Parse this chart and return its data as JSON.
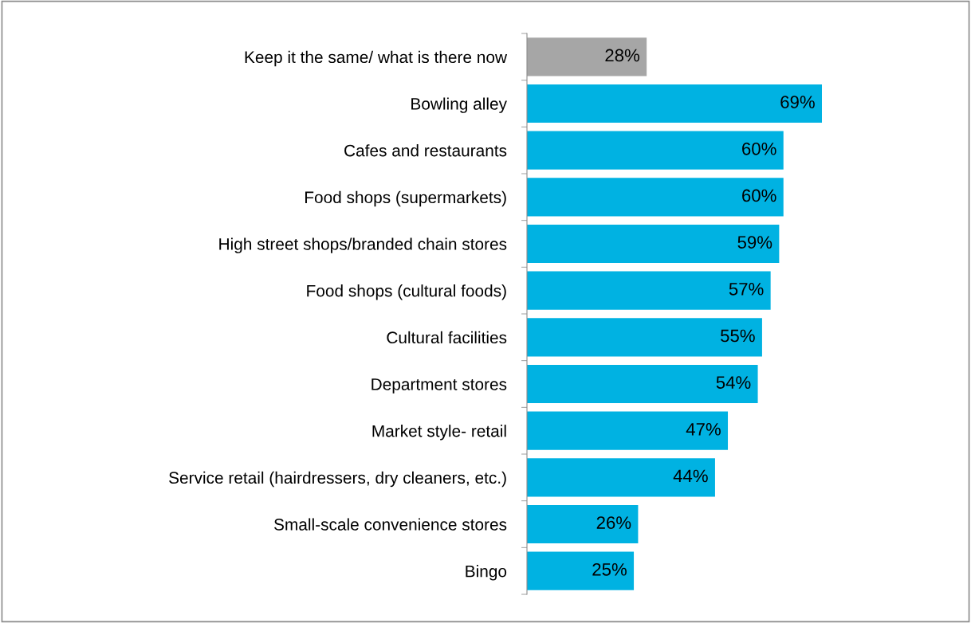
{
  "chart_data": {
    "type": "bar",
    "orientation": "horizontal",
    "categories": [
      "Keep it the same/ what is there now",
      "Bowling alley",
      "Cafes and restaurants",
      "Food shops (supermarkets)",
      "High street shops/branded chain stores",
      "Food shops (cultural foods)",
      "Cultural facilities",
      "Department stores",
      "Market style- retail",
      "Service retail (hairdressers, dry cleaners, etc.)",
      "Small-scale convenience stores",
      "Bingo"
    ],
    "values": [
      28,
      69,
      60,
      60,
      59,
      57,
      55,
      54,
      47,
      44,
      26,
      25
    ],
    "colors": [
      "#a6a6a6",
      "#00b2e2",
      "#00b2e2",
      "#00b2e2",
      "#00b2e2",
      "#00b2e2",
      "#00b2e2",
      "#00b2e2",
      "#00b2e2",
      "#00b2e2",
      "#00b2e2",
      "#00b2e2"
    ],
    "value_labels": [
      "28%",
      "69%",
      "60%",
      "60%",
      "59%",
      "57%",
      "55%",
      "54%",
      "47%",
      "44%",
      "26%",
      "25%"
    ],
    "grid": false,
    "legend": false,
    "tick_labels": "y"
  }
}
